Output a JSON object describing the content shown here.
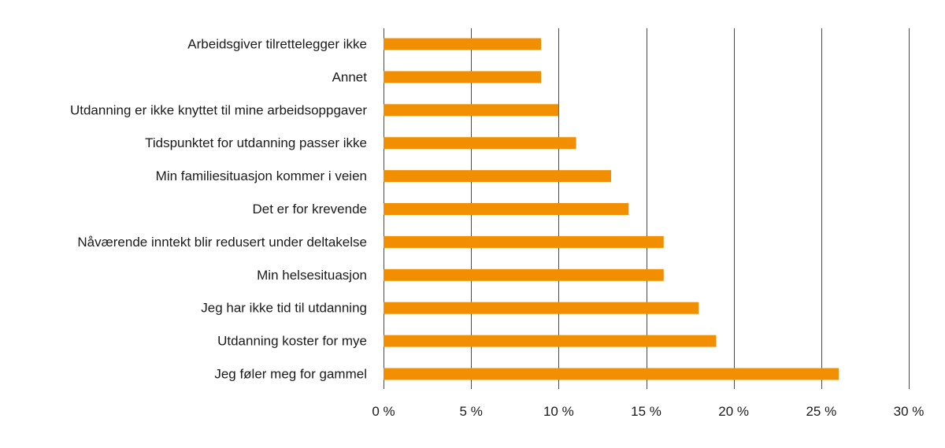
{
  "chart_data": {
    "type": "bar",
    "orientation": "horizontal",
    "title": "",
    "xlabel": "",
    "ylabel": "",
    "categories": [
      "Arbeidsgiver tilrettelegger ikke",
      "Annet",
      "Utdanning er ikke knyttet til mine arbeidsoppgaver",
      "Tidspunktet for utdanning passer ikke",
      "Min familiesituasjon kommer i veien",
      "Det er for krevende",
      "Nåværende inntekt blir redusert under deltakelse",
      "Min helsesituasjon",
      "Jeg har ikke tid til utdanning",
      "Utdanning koster for mye",
      "Jeg føler meg for gammel"
    ],
    "values": [
      9,
      9,
      10,
      11,
      13,
      14,
      16,
      16,
      18,
      19,
      26
    ],
    "xlim": [
      0,
      30
    ],
    "xticks": [
      0,
      5,
      10,
      15,
      20,
      25,
      30
    ],
    "xtick_labels": [
      "0 %",
      "5 %",
      "10 %",
      "15 %",
      "20 %",
      "25 %",
      "30 %"
    ],
    "grid": "vertical",
    "legend": "none",
    "bar_color": "#f18f00"
  }
}
